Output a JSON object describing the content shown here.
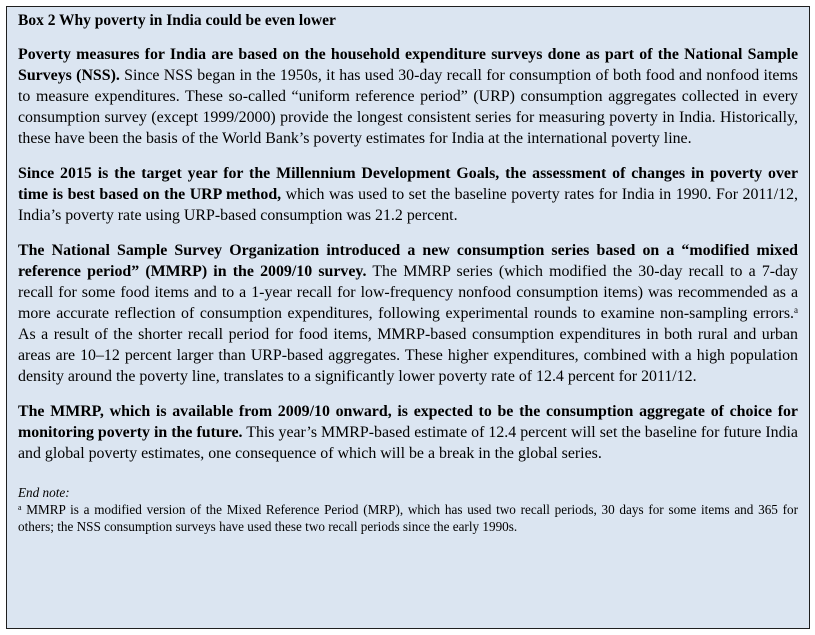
{
  "box": {
    "title": "Box 2 Why poverty in India could be even lower",
    "background_color": "#dbe5f1",
    "paragraphs": [
      {
        "lead": "Poverty measures for India are based on the household expenditure surveys done as part of the National Sample Surveys (NSS).",
        "body": " Since NSS began in the 1950s, it has used 30-day recall for consumption of both food and nonfood items to measure expenditures.  These so-called “uniform reference period” (URP) consumption aggregates collected in every consumption survey (except 1999/2000) provide the longest consistent series for measuring poverty in India. Historically, these have been the basis of the World Bank’s poverty estimates for India at the international poverty line."
      },
      {
        "lead": "Since 2015 is the target year for the Millennium Development Goals, the assessment of changes in poverty over time is best based on the URP method,",
        "body": " which was used to set the baseline poverty rates for India in 1990. For 2011/12, India’s poverty rate using URP-based consumption was 21.2 percent."
      },
      {
        "lead": "The National Sample Survey Organization introduced a new consumption series based on a “modified mixed reference period” (MMRP) in the 2009/10 survey.",
        "body": " The MMRP series (which modified the 30-day recall to a 7-day recall for some food items and to a 1-year recall for low-frequency nonfood consumption items) was recommended as a more accurate reflection of consumption expenditures, following experimental rounds to examine non-sampling errors.",
        "footnote_mark": "a",
        "body_after": " As a result of the shorter recall period for food items, MMRP-based consumption expenditures in both rural and urban areas are 10–12 percent larger than URP-based aggregates.  These higher expenditures, combined with a high population density around the poverty line, translates to a significantly lower poverty rate of 12.4 percent for 2011/12."
      },
      {
        "lead": "The MMRP, which is available from 2009/10 onward, is expected to be the consumption aggregate of choice for monitoring poverty in the future.",
        "body": " This year’s MMRP-based estimate of 12.4 percent will set the baseline for future India and global poverty estimates, one consequence of which will be a break in the global series."
      }
    ],
    "endnote": {
      "label": "End note:",
      "mark": "a",
      "text": " MMRP is a modified version of the Mixed Reference Period (MRP), which has used two recall periods, 30 days for some items and 365 for others; the NSS consumption surveys have used these two recall periods since the early 1990s."
    }
  }
}
